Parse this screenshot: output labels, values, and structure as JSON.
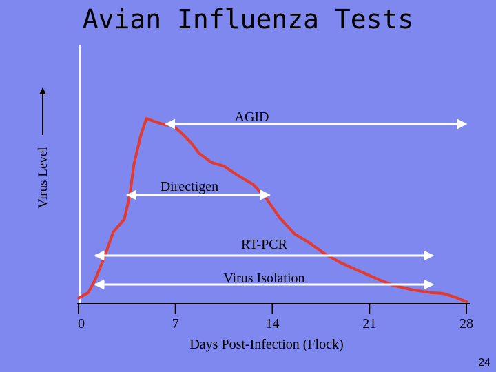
{
  "slide": {
    "title": "Avian Influenza Tests",
    "slide_number": "24",
    "background_color": "#7e88ee"
  },
  "chart_data": {
    "type": "line",
    "title": "Avian Influenza Tests",
    "xlabel": "Days Post-Infection (Flock)",
    "ylabel": "Virus Level",
    "x_ticks": [
      0,
      7,
      14,
      21,
      28
    ],
    "xlim": [
      0,
      28
    ],
    "curve_color": "#e23a2e",
    "curve": [
      {
        "x": 0,
        "y": 0.02
      },
      {
        "x": 0.7,
        "y": 0.05
      },
      {
        "x": 1.2,
        "y": 0.12
      },
      {
        "x": 1.9,
        "y": 0.25
      },
      {
        "x": 2.5,
        "y": 0.38
      },
      {
        "x": 3.3,
        "y": 0.45
      },
      {
        "x": 3.7,
        "y": 0.58
      },
      {
        "x": 4.0,
        "y": 0.75
      },
      {
        "x": 4.5,
        "y": 0.91
      },
      {
        "x": 4.9,
        "y": 1.0
      },
      {
        "x": 5.6,
        "y": 0.98
      },
      {
        "x": 6.3,
        "y": 0.965
      },
      {
        "x": 6.8,
        "y": 0.96
      },
      {
        "x": 7.3,
        "y": 0.93
      },
      {
        "x": 8.1,
        "y": 0.87
      },
      {
        "x": 8.7,
        "y": 0.81
      },
      {
        "x": 9.6,
        "y": 0.76
      },
      {
        "x": 10.5,
        "y": 0.74
      },
      {
        "x": 11.5,
        "y": 0.69
      },
      {
        "x": 12.6,
        "y": 0.64
      },
      {
        "x": 13.5,
        "y": 0.57
      },
      {
        "x": 14.5,
        "y": 0.46
      },
      {
        "x": 15.6,
        "y": 0.37
      },
      {
        "x": 16.7,
        "y": 0.32
      },
      {
        "x": 17.8,
        "y": 0.26
      },
      {
        "x": 19.0,
        "y": 0.21
      },
      {
        "x": 20.5,
        "y": 0.16
      },
      {
        "x": 21.7,
        "y": 0.12
      },
      {
        "x": 22.7,
        "y": 0.09
      },
      {
        "x": 24.1,
        "y": 0.065
      },
      {
        "x": 25.4,
        "y": 0.05
      },
      {
        "x": 26.3,
        "y": 0.045
      },
      {
        "x": 27.2,
        "y": 0.025
      },
      {
        "x": 28.0,
        "y": 0.0
      }
    ],
    "tests": [
      {
        "name": "AGID",
        "start": 6.3,
        "end": 28
      },
      {
        "name": "Directigen",
        "start": 3.5,
        "end": 13.8
      },
      {
        "name": "RT-PCR",
        "start": 1.2,
        "end": 25.6
      },
      {
        "name": "Virus Isolation",
        "start": 1.2,
        "end": 25.6
      }
    ],
    "arrow_color": "#ffffff"
  }
}
